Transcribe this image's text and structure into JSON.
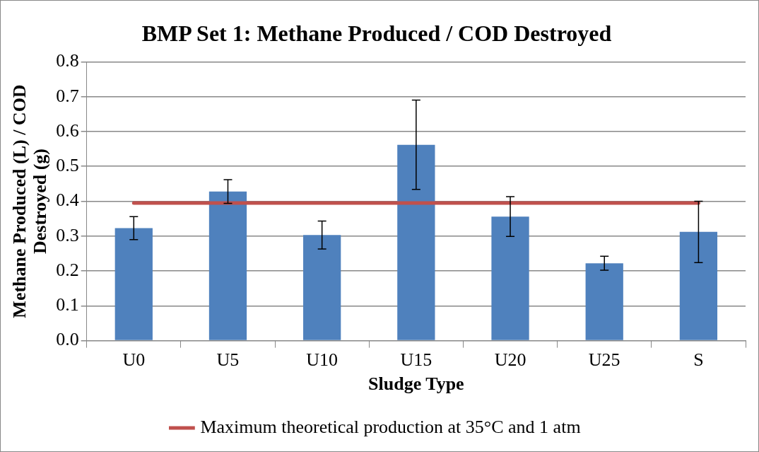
{
  "chart_data": {
    "type": "bar",
    "title": "BMP Set 1: Methane Produced / COD Destroyed",
    "xlabel": "Sludge Type",
    "ylabel": "Methane Produced (L) / COD Destroyed (g)",
    "categories": [
      "U0",
      "U5",
      "U10",
      "U15",
      "U20",
      "U25",
      "S"
    ],
    "series": [
      {
        "color": "#4f81bd",
        "values": [
          0.323,
          0.428,
          0.303,
          0.562,
          0.356,
          0.222,
          0.312
        ],
        "errors": [
          0.033,
          0.034,
          0.04,
          0.128,
          0.057,
          0.02,
          0.088
        ]
      },
      {
        "type": "line",
        "name": "Maximum theoretical production at 35°C and 1 atm",
        "color": "#c0504d",
        "values": [
          0.395,
          0.395,
          0.395,
          0.395,
          0.395,
          0.395,
          0.395
        ]
      }
    ],
    "ylim": [
      0,
      0.8
    ],
    "yticks": [
      {
        "value": 0,
        "label": "0.0"
      },
      {
        "value": 0.1,
        "label": "0.1"
      },
      {
        "value": 0.2,
        "label": "0.2"
      },
      {
        "value": 0.3,
        "label": "0.3"
      },
      {
        "value": 0.4,
        "label": "0.4"
      },
      {
        "value": 0.5,
        "label": "0.5"
      },
      {
        "value": 0.6,
        "label": "0.6"
      },
      {
        "value": 0.7,
        "label": "0.7"
      },
      {
        "value": 0.8,
        "label": "0.8"
      }
    ],
    "grid": "y",
    "legend": "bottom",
    "marker": "none",
    "line_style": "solid"
  }
}
